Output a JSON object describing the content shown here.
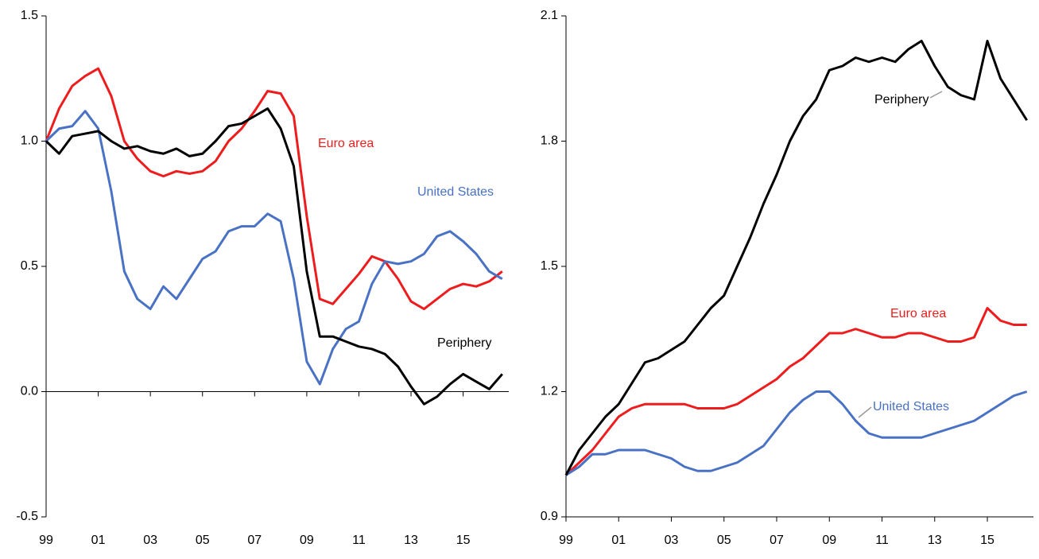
{
  "chart_data": [
    {
      "type": "line",
      "x": [
        1999,
        1999.5,
        2000,
        2000.5,
        2001,
        2001.5,
        2002,
        2002.5,
        2003,
        2003.5,
        2004,
        2004.5,
        2005,
        2005.5,
        2006,
        2006.5,
        2007,
        2007.5,
        2008,
        2008.5,
        2009,
        2009.5,
        2010,
        2010.5,
        2011,
        2011.5,
        2012,
        2012.5,
        2013,
        2013.5,
        2014,
        2014.5,
        2015,
        2015.5,
        2016,
        2016.5
      ],
      "xlim": [
        1999,
        2016.75
      ],
      "xticks": [
        {
          "value": 1999,
          "label": "99"
        },
        {
          "value": 2001,
          "label": "01"
        },
        {
          "value": 2003,
          "label": "03"
        },
        {
          "value": 2005,
          "label": "05"
        },
        {
          "value": 2007,
          "label": "07"
        },
        {
          "value": 2009,
          "label": "09"
        },
        {
          "value": 2011,
          "label": "11"
        },
        {
          "value": 2013,
          "label": "13"
        },
        {
          "value": 2015,
          "label": "15"
        }
      ],
      "ylim": [
        -0.5,
        1.5
      ],
      "yticks": [
        -0.5,
        {
          "value": 0,
          "label": "0.0"
        },
        0.5,
        {
          "value": 1,
          "label": "1.0"
        },
        1.5
      ],
      "series": [
        {
          "name": "Euro area",
          "color": "#ee1c1c",
          "values": [
            1.0,
            1.13,
            1.22,
            1.26,
            1.29,
            1.18,
            1.0,
            0.93,
            0.88,
            0.86,
            0.88,
            0.87,
            0.88,
            0.92,
            1.0,
            1.05,
            1.12,
            1.2,
            1.19,
            1.1,
            0.7,
            0.37,
            0.35,
            0.41,
            0.47,
            0.54,
            0.52,
            0.45,
            0.36,
            0.33,
            0.37,
            0.41,
            0.43,
            0.42,
            0.44,
            0.48
          ]
        },
        {
          "name": "United States",
          "color": "#4a72c4",
          "values": [
            1.0,
            1.05,
            1.06,
            1.12,
            1.05,
            0.8,
            0.48,
            0.37,
            0.33,
            0.42,
            0.37,
            0.45,
            0.53,
            0.56,
            0.64,
            0.66,
            0.66,
            0.71,
            0.68,
            0.45,
            0.12,
            0.03,
            0.17,
            0.25,
            0.28,
            0.43,
            0.52,
            0.51,
            0.52,
            0.55,
            0.62,
            0.64,
            0.6,
            0.55,
            0.48,
            0.45
          ]
        },
        {
          "name": "Periphery",
          "color": "#000000",
          "values": [
            1.0,
            0.95,
            1.02,
            1.03,
            1.04,
            1.0,
            0.97,
            0.98,
            0.96,
            0.95,
            0.97,
            0.94,
            0.95,
            1.0,
            1.06,
            1.07,
            1.1,
            1.13,
            1.05,
            0.9,
            0.48,
            0.22,
            0.22,
            0.2,
            0.18,
            0.17,
            0.15,
            0.1,
            0.02,
            -0.05,
            -0.02,
            0.03,
            0.07,
            0.04,
            0.01,
            0.07
          ]
        }
      ]
    },
    {
      "type": "line",
      "x": [
        1999,
        1999.5,
        2000,
        2000.5,
        2001,
        2001.5,
        2002,
        2002.5,
        2003,
        2003.5,
        2004,
        2004.5,
        2005,
        2005.5,
        2006,
        2006.5,
        2007,
        2007.5,
        2008,
        2008.5,
        2009,
        2009.5,
        2010,
        2010.5,
        2011,
        2011.5,
        2012,
        2012.5,
        2013,
        2013.5,
        2014,
        2014.5,
        2015,
        2015.5,
        2016,
        2016.5
      ],
      "xlim": [
        1999,
        2016.75
      ],
      "xticks": [
        {
          "value": 1999,
          "label": "99"
        },
        {
          "value": 2001,
          "label": "01"
        },
        {
          "value": 2003,
          "label": "03"
        },
        {
          "value": 2005,
          "label": "05"
        },
        {
          "value": 2007,
          "label": "07"
        },
        {
          "value": 2009,
          "label": "09"
        },
        {
          "value": 2011,
          "label": "11"
        },
        {
          "value": 2013,
          "label": "13"
        },
        {
          "value": 2015,
          "label": "15"
        }
      ],
      "ylim": [
        0.9,
        2.1
      ],
      "yticks": [
        0.9,
        1.2,
        1.5,
        1.8,
        2.1
      ],
      "series": [
        {
          "name": "Euro area",
          "color": "#ee1c1c",
          "values": [
            1.0,
            1.03,
            1.06,
            1.1,
            1.14,
            1.16,
            1.17,
            1.17,
            1.17,
            1.17,
            1.16,
            1.16,
            1.16,
            1.17,
            1.19,
            1.21,
            1.23,
            1.26,
            1.28,
            1.31,
            1.34,
            1.34,
            1.35,
            1.34,
            1.33,
            1.33,
            1.34,
            1.34,
            1.33,
            1.32,
            1.32,
            1.33,
            1.4,
            1.37,
            1.36,
            1.36
          ]
        },
        {
          "name": "United States",
          "color": "#4a72c4",
          "values": [
            1.0,
            1.02,
            1.05,
            1.05,
            1.06,
            1.06,
            1.06,
            1.05,
            1.04,
            1.02,
            1.01,
            1.01,
            1.02,
            1.03,
            1.05,
            1.07,
            1.11,
            1.15,
            1.18,
            1.2,
            1.2,
            1.17,
            1.13,
            1.1,
            1.09,
            1.09,
            1.09,
            1.09,
            1.1,
            1.11,
            1.12,
            1.13,
            1.15,
            1.17,
            1.19,
            1.2
          ]
        },
        {
          "name": "Periphery",
          "color": "#000000",
          "values": [
            1.0,
            1.06,
            1.1,
            1.14,
            1.17,
            1.22,
            1.27,
            1.28,
            1.3,
            1.32,
            1.36,
            1.4,
            1.43,
            1.5,
            1.57,
            1.65,
            1.72,
            1.8,
            1.86,
            1.9,
            1.97,
            1.98,
            2.0,
            1.99,
            2.0,
            1.99,
            2.02,
            2.04,
            1.98,
            1.93,
            1.91,
            1.9,
            2.04,
            1.95,
            1.9,
            1.85
          ]
        }
      ]
    }
  ]
}
